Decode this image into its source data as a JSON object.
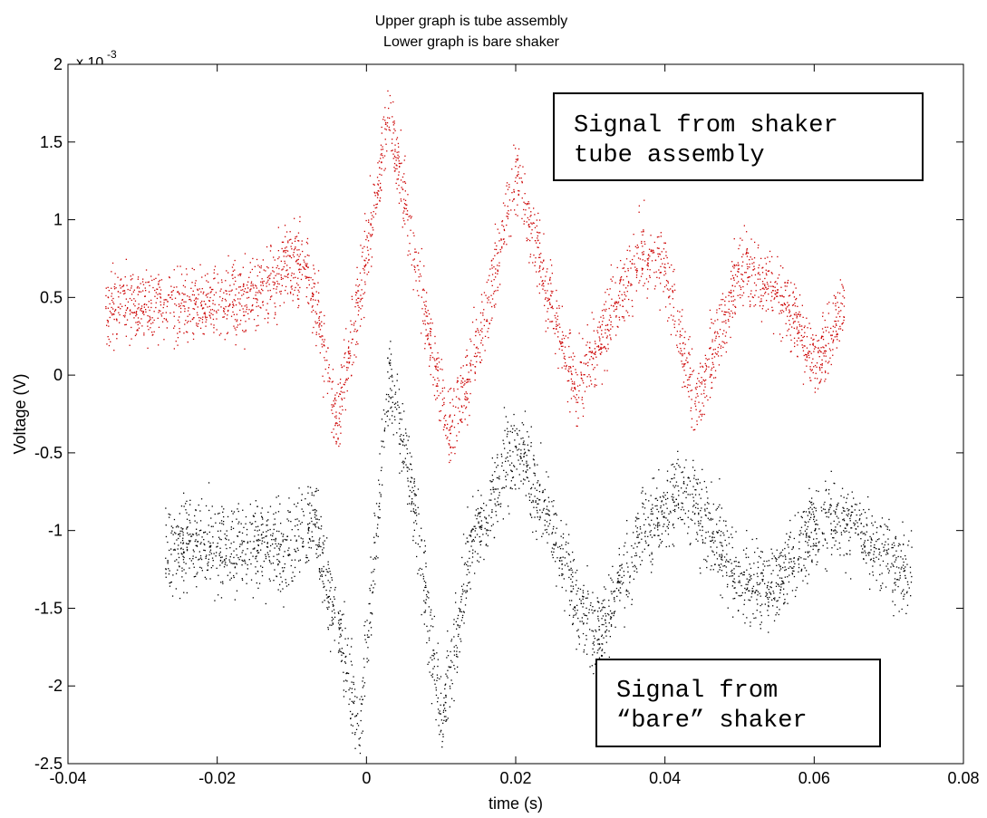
{
  "chart_data": {
    "type": "scatter",
    "title_lines": [
      "Upper graph is tube assembly",
      "Lower graph is bare shaker"
    ],
    "xlabel": "time (s)",
    "ylabel": "Voltage (V)",
    "y_exponent_base": "x 10",
    "y_exponent_power": "-3",
    "xlim": [
      -0.04,
      0.08
    ],
    "ylim": [
      -2.5,
      2
    ],
    "x_ticks": [
      "-0.04",
      "-0.02",
      "0",
      "0.02",
      "0.04",
      "0.06",
      "0.08"
    ],
    "y_ticks": [
      "2",
      "1.5",
      "1",
      "0.5",
      "0",
      "-0.5",
      "-1",
      "-1.5",
      "-2",
      "-2.5"
    ],
    "grid": false,
    "annotations": [
      {
        "lines": [
          "Signal from shaker",
          "tube assembly"
        ]
      },
      {
        "lines": [
          "Signal from",
          "“bare” shaker"
        ]
      }
    ],
    "series": [
      {
        "color": "#cc0000",
        "x_range": [
          -0.035,
          0.064
        ],
        "spread": 0.00012,
        "centerline": [
          [
            -0.035,
            0.00045
          ],
          [
            -0.02,
            0.00045
          ],
          [
            -0.015,
            0.0005
          ],
          [
            -0.01,
            0.00075
          ],
          [
            -0.008,
            0.0007
          ],
          [
            -0.006,
            0.0002
          ],
          [
            -0.004,
            -0.0003
          ],
          [
            0.0,
            0.0008
          ],
          [
            0.003,
            0.0017
          ],
          [
            0.007,
            0.0006
          ],
          [
            0.011,
            -0.0004
          ],
          [
            0.015,
            0.0002
          ],
          [
            0.02,
            0.0013
          ],
          [
            0.024,
            0.0006
          ],
          [
            0.028,
            -0.0001
          ],
          [
            0.032,
            0.0003
          ],
          [
            0.037,
            0.0008
          ],
          [
            0.04,
            0.0007
          ],
          [
            0.044,
            -0.0002
          ],
          [
            0.046,
            0.0001
          ],
          [
            0.05,
            0.0007
          ],
          [
            0.054,
            0.0006
          ],
          [
            0.057,
            0.0004
          ],
          [
            0.06,
            0.0001
          ],
          [
            0.062,
            0.0002
          ],
          [
            0.064,
            0.0005
          ]
        ]
      },
      {
        "color": "#000000",
        "x_range": [
          -0.027,
          0.073
        ],
        "spread": 0.00014,
        "centerline": [
          [
            -0.027,
            -0.0011
          ],
          [
            -0.01,
            -0.0011
          ],
          [
            -0.007,
            -0.0009
          ],
          [
            -0.006,
            -0.0012
          ],
          [
            -0.003,
            -0.0018
          ],
          [
            -0.001,
            -0.0023
          ],
          [
            0.003,
            0.0
          ],
          [
            0.006,
            -0.0007
          ],
          [
            0.01,
            -0.0022
          ],
          [
            0.014,
            -0.0011
          ],
          [
            0.02,
            -0.0004
          ],
          [
            0.024,
            -0.0009
          ],
          [
            0.028,
            -0.0014
          ],
          [
            0.031,
            -0.0017
          ],
          [
            0.036,
            -0.0011
          ],
          [
            0.042,
            -0.0007
          ],
          [
            0.046,
            -0.001
          ],
          [
            0.05,
            -0.0013
          ],
          [
            0.054,
            -0.0014
          ],
          [
            0.058,
            -0.0011
          ],
          [
            0.062,
            -0.0009
          ],
          [
            0.066,
            -0.001
          ],
          [
            0.07,
            -0.0012
          ],
          [
            0.073,
            -0.0013
          ]
        ]
      }
    ]
  }
}
